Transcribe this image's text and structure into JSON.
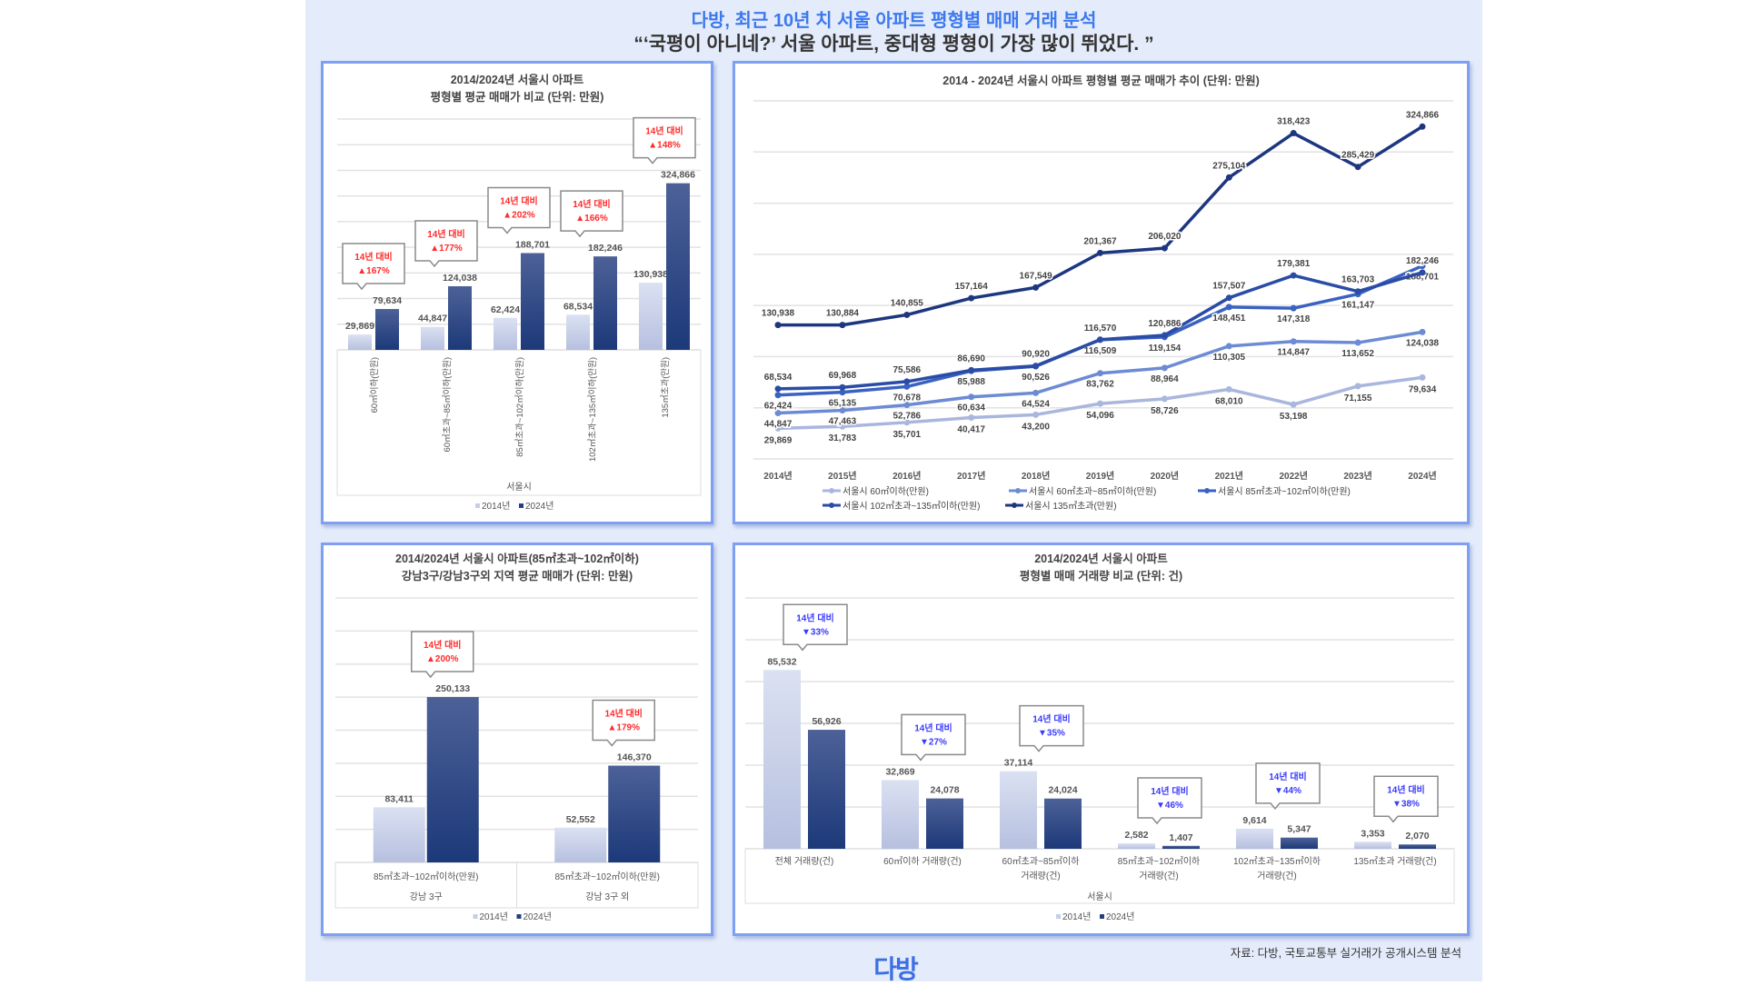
{
  "header": {
    "title": "다방, 최근 10년 치 서울 아파트 평형별 매매 거래 분석",
    "subtitle": "“‘국평이 아니네?’ 서울 아파트, 중대형 평형이 가장 많이 뛰었다. ”"
  },
  "footer": {
    "source": "자료: 다방, 국토교통부 실거래가 공개시스템 분석",
    "logo": "다방"
  },
  "colors": {
    "accent": "#3c78ee",
    "bar_2014": "#c6cee8",
    "bar_2024": "#253f82",
    "increase": "#ff2a2a",
    "decrease": "#3a3aff",
    "panel_border": "#7ea0f2"
  },
  "chart_data": [
    {
      "type": "bar",
      "title": [
        "2014/2024년 서울시 아파트",
        "평형별 평균 매매가 비교 (단위: 만원)"
      ],
      "categories": [
        "60㎡이하(만원)",
        "60㎡초과~85㎡이하(만원)",
        "85㎡초과~102㎡이하(만원)",
        "102㎡초과~135㎡이하(만원)",
        "135㎡초과(만원)"
      ],
      "xlabel": "서울시",
      "ylim": [
        0,
        450000
      ],
      "grid": true,
      "legend": "bottom",
      "series": [
        {
          "name": "2014년",
          "values": [
            29869,
            44847,
            62424,
            68534,
            130938
          ]
        },
        {
          "name": "2024년",
          "values": [
            79634,
            124038,
            188701,
            182246,
            324866
          ]
        }
      ],
      "callouts": [
        {
          "label": "14년 대비",
          "change": "▲167%"
        },
        {
          "label": "14년 대비",
          "change": "▲177%"
        },
        {
          "label": "14년 대비",
          "change": "▲202%"
        },
        {
          "label": "14년 대비",
          "change": "▲166%"
        },
        {
          "label": "14년 대비",
          "change": "▲148%"
        }
      ],
      "callout_type": "increase"
    },
    {
      "type": "line",
      "title": [
        "2014 - 2024년 서울시 아파트 평형별 평균 매매가 추이 (단위: 만원)"
      ],
      "categories": [
        "2014년",
        "2015년",
        "2016년",
        "2017년",
        "2018년",
        "2019년",
        "2020년",
        "2021년",
        "2022년",
        "2023년",
        "2024년"
      ],
      "ylim": [
        0,
        350000
      ],
      "grid": true,
      "legend": "bottom",
      "series": [
        {
          "name": "서울시 60㎡이하(만원)",
          "color": "#a9b6de",
          "values": [
            29869,
            31783,
            35701,
            40417,
            43200,
            54096,
            58726,
            68010,
            53198,
            71155,
            79634
          ]
        },
        {
          "name": "서울시 60㎡초과~85㎡이하(만원)",
          "color": "#6d8bd4",
          "values": [
            44847,
            47463,
            52786,
            60634,
            64524,
            83762,
            88964,
            110305,
            114847,
            113652,
            124038
          ]
        },
        {
          "name": "서울시 85㎡초과~102㎡이하(만원)",
          "color": "#3a62c2",
          "values": [
            62424,
            65135,
            70678,
            85988,
            90526,
            116509,
            119154,
            148451,
            147318,
            161147,
            188701
          ]
        },
        {
          "name": "서울시 102㎡초과~135㎡이하(만원)",
          "color": "#2a4ca6",
          "values": [
            68534,
            69968,
            75586,
            86690,
            90920,
            116570,
            120886,
            157507,
            179381,
            163703,
            182246
          ]
        },
        {
          "name": "서울시 135㎡초과(만원)",
          "color": "#1d3680",
          "values": [
            130938,
            130884,
            140855,
            157164,
            167549,
            201367,
            206020,
            275104,
            318423,
            285429,
            324866
          ]
        }
      ]
    },
    {
      "type": "bar",
      "title": [
        "2014/2024년 서울시 아파트(85㎡초과~102㎡이하)",
        "강남3구/강남3구외 지역 평균 매매가 (단위: 만원)"
      ],
      "categories": [
        "85㎡초과~102㎡이하(만원)",
        "85㎡초과~102㎡이하(만원)"
      ],
      "group_labels": [
        "강남 3구",
        "강남 3구 외"
      ],
      "ylim": [
        0,
        400000
      ],
      "grid": true,
      "legend": "bottom",
      "series": [
        {
          "name": "2014년",
          "values": [
            83411,
            52552
          ]
        },
        {
          "name": "2024년",
          "values": [
            250133,
            146370
          ]
        }
      ],
      "callouts": [
        {
          "label": "14년 대비",
          "change": "▲200%"
        },
        {
          "label": "14년 대비",
          "change": "▲179%"
        }
      ],
      "callout_type": "increase"
    },
    {
      "type": "bar",
      "title": [
        "2014/2024년 서울시 아파트",
        "평형별 매매 거래량 비교 (단위: 건)"
      ],
      "categories": [
        [
          "전체 거래량(건)"
        ],
        [
          "60㎡이하 거래량(건)"
        ],
        [
          "60㎡초과~85㎡이하",
          "거래량(건)"
        ],
        [
          "85㎡초과~102㎡이하",
          "거래량(건)"
        ],
        [
          "102㎡초과~135㎡이하",
          "거래량(건)"
        ],
        [
          "135㎡초과 거래량(건)"
        ]
      ],
      "xlabel": "서울시",
      "ylim": [
        0,
        120000
      ],
      "grid": true,
      "legend": "bottom",
      "series": [
        {
          "name": "2014년",
          "values": [
            85532,
            32869,
            37114,
            2582,
            9614,
            3353
          ]
        },
        {
          "name": "2024년",
          "values": [
            56926,
            24078,
            24024,
            1407,
            5347,
            2070
          ]
        }
      ],
      "callouts": [
        {
          "label": "14년 대비",
          "change": "▼33%"
        },
        {
          "label": "14년 대비",
          "change": "▼27%"
        },
        {
          "label": "14년 대비",
          "change": "▼35%"
        },
        {
          "label": "14년 대비",
          "change": "▼46%"
        },
        {
          "label": "14년 대비",
          "change": "▼44%"
        },
        {
          "label": "14년 대비",
          "change": "▼38%"
        }
      ],
      "callout_type": "decrease"
    }
  ]
}
